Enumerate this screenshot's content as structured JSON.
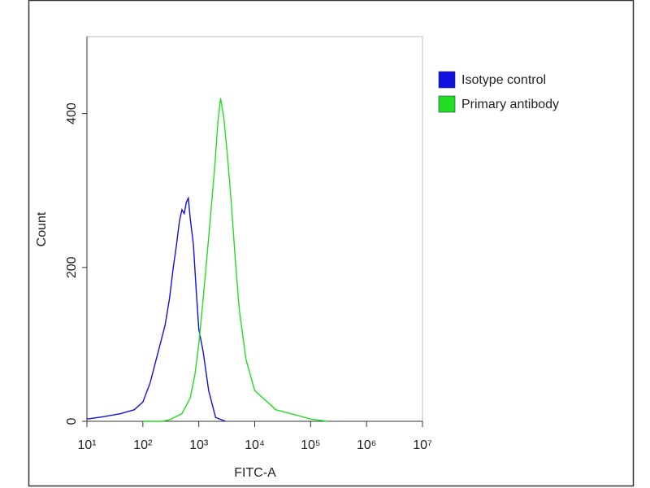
{
  "chart_data": {
    "type": "line",
    "xlabel": "FITC-A",
    "ylabel": "Count",
    "xscale": "log",
    "xlim": [
      10,
      10000000
    ],
    "xticks": [
      {
        "value": 10,
        "label": "10¹"
      },
      {
        "value": 100,
        "label": "10²"
      },
      {
        "value": 1000,
        "label": "10³"
      },
      {
        "value": 10000,
        "label": "10⁴"
      },
      {
        "value": 100000,
        "label": "10⁵"
      },
      {
        "value": 1000000,
        "label": "10⁶"
      },
      {
        "value": 10000000,
        "label": "10⁷"
      }
    ],
    "ylim": [
      0,
      500
    ],
    "yticks": [
      0,
      200,
      400
    ],
    "grid": false,
    "legend": "upper right",
    "series": [
      {
        "name": "Isotype control",
        "color": "#1010e0",
        "x": [
          10,
          20,
          40,
          70,
          100,
          135,
          180,
          250,
          300,
          350,
          400,
          450,
          500,
          550,
          600,
          650,
          700,
          800,
          900,
          1000,
          1200,
          1500,
          2000,
          3000
        ],
        "values": [
          3,
          6,
          10,
          15,
          25,
          50,
          85,
          125,
          160,
          200,
          230,
          260,
          275,
          270,
          285,
          290,
          265,
          230,
          170,
          120,
          90,
          40,
          5,
          0
        ]
      },
      {
        "name": "Primary antibody",
        "color": "#22dd22",
        "x": [
          100,
          220,
          300,
          500,
          700,
          850,
          1000,
          1200,
          1550,
          1950,
          2200,
          2450,
          2800,
          3300,
          3800,
          4500,
          5300,
          7000,
          10000,
          24000,
          100000,
          200000
        ],
        "values": [
          0,
          0,
          2,
          10,
          30,
          60,
          100,
          160,
          250,
          335,
          390,
          420,
          395,
          340,
          285,
          210,
          145,
          80,
          40,
          15,
          3,
          0
        ]
      }
    ]
  }
}
